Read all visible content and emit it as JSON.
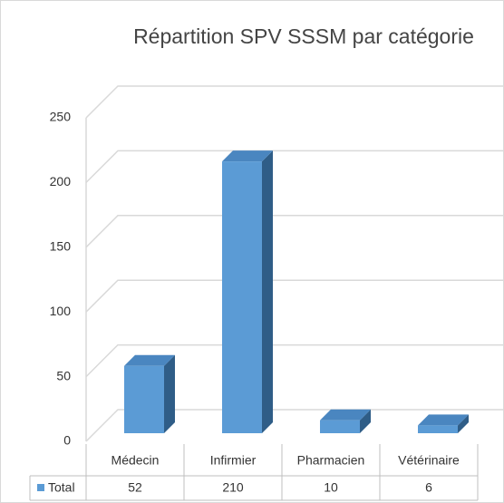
{
  "chart_data": {
    "type": "bar3d",
    "title": "Répartition SPV SSSM par catégorie",
    "categories": [
      "Médecin",
      "Infirmier",
      "Pharmacien",
      "Vétérinaire"
    ],
    "series": [
      {
        "name": "Total",
        "color": "#5b9bd5",
        "values": [
          52,
          210,
          10,
          6
        ]
      }
    ],
    "ylim": [
      0,
      250
    ],
    "yticks": [
      0,
      50,
      100,
      150,
      200,
      250
    ],
    "grid": true
  }
}
